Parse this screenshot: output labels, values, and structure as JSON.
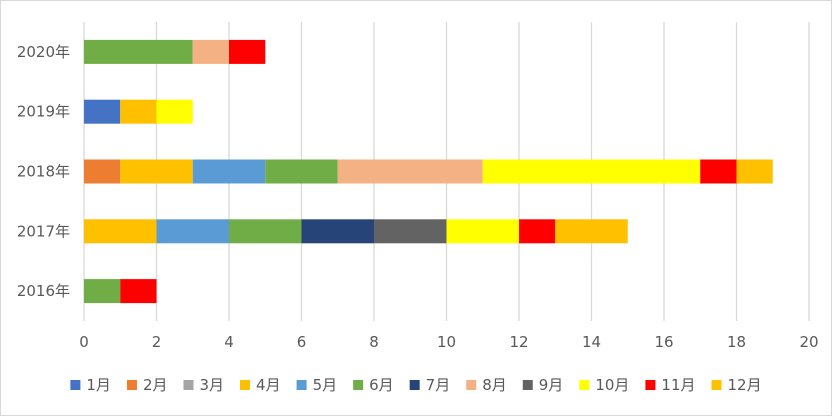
{
  "chart_data": {
    "type": "bar",
    "orientation": "horizontal",
    "stacked": true,
    "categories": [
      "2016年",
      "2017年",
      "2018年",
      "2019年",
      "2020年"
    ],
    "xlim": [
      0,
      20
    ],
    "x_ticks": [
      "0",
      "2",
      "4",
      "6",
      "8",
      "10",
      "12",
      "14",
      "16",
      "18",
      "20"
    ],
    "grid": "vertical",
    "legend_position": "bottom",
    "series": [
      {
        "name": "1月",
        "color": "#4472c4",
        "values": [
          0,
          0,
          0,
          1,
          0
        ]
      },
      {
        "name": "2月",
        "color": "#ed7d31",
        "values": [
          0,
          0,
          1,
          0,
          0
        ]
      },
      {
        "name": "3月",
        "color": "#a5a5a5",
        "values": [
          0,
          0,
          0,
          0,
          0
        ]
      },
      {
        "name": "4月",
        "color": "#ffc000",
        "values": [
          0,
          2,
          2,
          1,
          0
        ]
      },
      {
        "name": "5月",
        "color": "#5b9bd5",
        "values": [
          0,
          2,
          2,
          0,
          0
        ]
      },
      {
        "name": "6月",
        "color": "#70ad47",
        "values": [
          1,
          2,
          2,
          0,
          3
        ]
      },
      {
        "name": "7月",
        "color": "#264478",
        "values": [
          0,
          2,
          0,
          0,
          0
        ]
      },
      {
        "name": "8月",
        "color": "#f4b183",
        "values": [
          0,
          0,
          4,
          0,
          1
        ]
      },
      {
        "name": "9月",
        "color": "#636363",
        "values": [
          0,
          2,
          0,
          0,
          0
        ]
      },
      {
        "name": "10月",
        "color": "#ffff00",
        "values": [
          0,
          2,
          6,
          1,
          0
        ]
      },
      {
        "name": "11月",
        "color": "#ff0000",
        "values": [
          1,
          1,
          1,
          0,
          1
        ]
      },
      {
        "name": "12月",
        "color": "#ffc000",
        "values": [
          0,
          2,
          1,
          0,
          0
        ]
      }
    ]
  }
}
